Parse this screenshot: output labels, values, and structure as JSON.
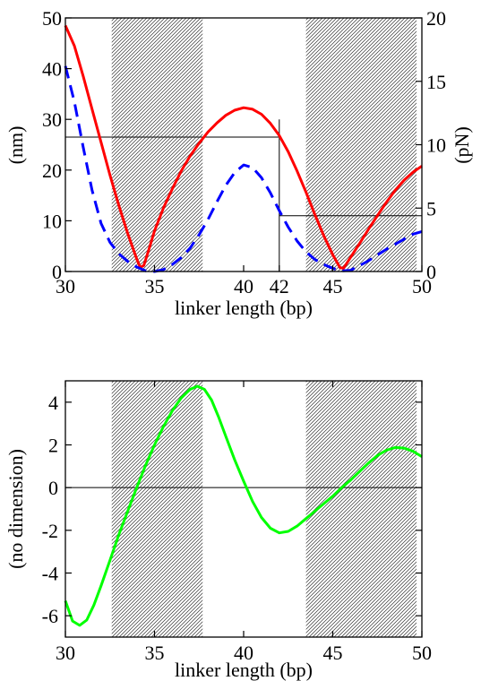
{
  "chart_data": [
    {
      "type": "line",
      "xlabel": "linker length (bp)",
      "ylabel_left": "(nm)",
      "ylabel_right": "(pN)",
      "xlim": [
        30,
        50
      ],
      "ylim_left": [
        0,
        50
      ],
      "ylim_right": [
        0,
        20
      ],
      "x_ticks": [
        30,
        35,
        40,
        42,
        45,
        50
      ],
      "y_ticks_left": [
        0,
        10,
        20,
        30,
        40,
        50
      ],
      "y_ticks_right": [
        0,
        5,
        10,
        15,
        20
      ],
      "shaded_regions": [
        [
          32.6,
          37.7
        ],
        [
          43.5,
          49.7
        ]
      ],
      "series": [
        {
          "axis": "left",
          "color": "#ff0000",
          "style": "solid",
          "points": [
            [
              30.0,
              48.5
            ],
            [
              30.5,
              44.5
            ],
            [
              31.0,
              38.5
            ],
            [
              31.5,
              32.0
            ],
            [
              32.0,
              25.5
            ],
            [
              32.5,
              19.0
            ],
            [
              33.0,
              13.0
            ],
            [
              33.5,
              7.5
            ],
            [
              34.0,
              2.5
            ],
            [
              34.2,
              0.8
            ],
            [
              34.4,
              1.2
            ],
            [
              34.7,
              4.5
            ],
            [
              35.0,
              8.0
            ],
            [
              35.5,
              12.5
            ],
            [
              36.0,
              16.3
            ],
            [
              36.5,
              19.8
            ],
            [
              37.0,
              22.8
            ],
            [
              37.5,
              25.3
            ],
            [
              38.0,
              27.5
            ],
            [
              38.5,
              29.3
            ],
            [
              39.0,
              30.8
            ],
            [
              39.5,
              31.8
            ],
            [
              40.0,
              32.3
            ],
            [
              40.5,
              32.0
            ],
            [
              41.0,
              31.0
            ],
            [
              41.5,
              29.2
            ],
            [
              42.0,
              26.8
            ],
            [
              42.5,
              23.6
            ],
            [
              43.0,
              19.8
            ],
            [
              43.5,
              15.6
            ],
            [
              44.0,
              11.2
            ],
            [
              44.5,
              7.0
            ],
            [
              45.0,
              3.3
            ],
            [
              45.4,
              0.8
            ],
            [
              45.6,
              0.6
            ],
            [
              46.0,
              2.8
            ],
            [
              46.5,
              5.5
            ],
            [
              47.0,
              8.3
            ],
            [
              47.5,
              11.0
            ],
            [
              48.0,
              13.6
            ],
            [
              48.5,
              16.0
            ],
            [
              49.0,
              18.0
            ],
            [
              49.5,
              19.6
            ],
            [
              50.0,
              20.8
            ]
          ]
        },
        {
          "axis": "right",
          "color": "#0000ff",
          "style": "dashed",
          "points": [
            [
              30.0,
              16.2
            ],
            [
              30.5,
              13.4
            ],
            [
              31.0,
              9.8
            ],
            [
              31.5,
              6.4
            ],
            [
              32.0,
              3.8
            ],
            [
              32.5,
              2.3
            ],
            [
              33.0,
              1.4
            ],
            [
              33.5,
              0.8
            ],
            [
              34.0,
              0.35
            ],
            [
              34.5,
              0.05
            ],
            [
              35.0,
              0.0
            ],
            [
              35.5,
              0.15
            ],
            [
              36.0,
              0.55
            ],
            [
              36.5,
              1.1
            ],
            [
              37.0,
              1.85
            ],
            [
              37.5,
              2.9
            ],
            [
              38.0,
              4.1
            ],
            [
              38.5,
              5.5
            ],
            [
              39.0,
              6.8
            ],
            [
              39.5,
              7.8
            ],
            [
              40.0,
              8.4
            ],
            [
              40.5,
              8.2
            ],
            [
              41.0,
              7.4
            ],
            [
              41.5,
              6.2
            ],
            [
              42.0,
              4.8
            ],
            [
              42.5,
              3.5
            ],
            [
              43.0,
              2.4
            ],
            [
              43.5,
              1.55
            ],
            [
              44.0,
              0.95
            ],
            [
              44.5,
              0.55
            ],
            [
              45.0,
              0.25
            ],
            [
              45.5,
              0.05
            ],
            [
              46.0,
              0.1
            ],
            [
              46.5,
              0.45
            ],
            [
              47.0,
              0.85
            ],
            [
              47.5,
              1.3
            ],
            [
              48.0,
              1.75
            ],
            [
              48.5,
              2.15
            ],
            [
              49.0,
              2.55
            ],
            [
              49.5,
              2.95
            ],
            [
              50.0,
              3.15
            ]
          ]
        }
      ],
      "reference_lines": [
        {
          "kind": "hline",
          "y": 26.5,
          "axis": "left",
          "from": 30,
          "to": 42
        },
        {
          "kind": "vline",
          "x": 42,
          "from": 0,
          "to": 30,
          "axis": "left"
        },
        {
          "kind": "hline",
          "y": 4.4,
          "axis": "right",
          "from": 42,
          "to": 50
        }
      ]
    },
    {
      "type": "line",
      "xlabel": "linker length (bp)",
      "ylabel": "(no dimension)",
      "xlim": [
        30,
        50
      ],
      "ylim": [
        -7,
        5
      ],
      "x_ticks": [
        30,
        35,
        40,
        45,
        50
      ],
      "y_ticks": [
        -6,
        -4,
        -2,
        0,
        2,
        4
      ],
      "y_tick_labels": [
        "-6",
        "-4",
        "-2",
        "0",
        "2",
        "4"
      ],
      "shaded_regions": [
        [
          32.6,
          37.7
        ],
        [
          43.5,
          49.7
        ]
      ],
      "zero_line": true,
      "series": [
        {
          "color": "#00ff00",
          "style": "solid",
          "points": [
            [
              30.0,
              -5.3
            ],
            [
              30.4,
              -6.25
            ],
            [
              30.8,
              -6.45
            ],
            [
              31.2,
              -6.2
            ],
            [
              31.6,
              -5.5
            ],
            [
              32.0,
              -4.6
            ],
            [
              32.5,
              -3.4
            ],
            [
              33.0,
              -2.2
            ],
            [
              33.5,
              -1.1
            ],
            [
              34.0,
              0.0
            ],
            [
              34.5,
              1.05
            ],
            [
              35.0,
              2.0
            ],
            [
              35.5,
              2.85
            ],
            [
              36.0,
              3.6
            ],
            [
              36.5,
              4.2
            ],
            [
              37.0,
              4.6
            ],
            [
              37.4,
              4.75
            ],
            [
              37.8,
              4.6
            ],
            [
              38.2,
              4.1
            ],
            [
              38.6,
              3.3
            ],
            [
              39.0,
              2.4
            ],
            [
              39.5,
              1.3
            ],
            [
              40.0,
              0.3
            ],
            [
              40.5,
              -0.65
            ],
            [
              41.0,
              -1.4
            ],
            [
              41.5,
              -1.9
            ],
            [
              42.0,
              -2.12
            ],
            [
              42.5,
              -2.05
            ],
            [
              43.0,
              -1.8
            ],
            [
              43.5,
              -1.45
            ],
            [
              44.0,
              -1.1
            ],
            [
              44.5,
              -0.75
            ],
            [
              45.0,
              -0.4
            ],
            [
              45.5,
              0.0
            ],
            [
              46.0,
              0.35
            ],
            [
              46.5,
              0.75
            ],
            [
              47.0,
              1.15
            ],
            [
              47.5,
              1.5
            ],
            [
              48.0,
              1.75
            ],
            [
              48.5,
              1.88
            ],
            [
              49.0,
              1.85
            ],
            [
              49.5,
              1.7
            ],
            [
              50.0,
              1.45
            ]
          ]
        }
      ]
    }
  ]
}
